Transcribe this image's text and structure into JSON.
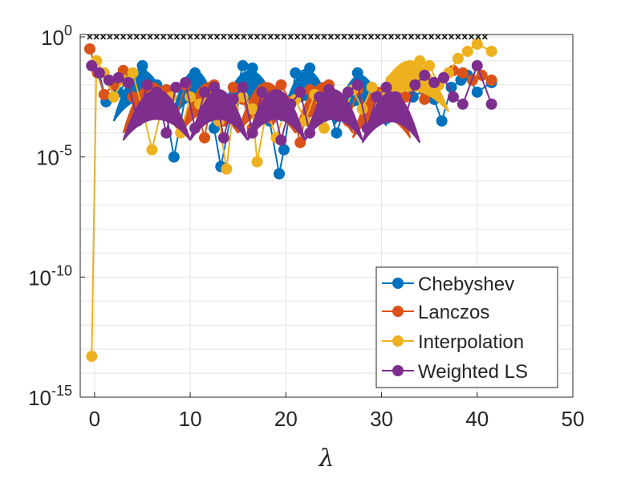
{
  "chart_data": {
    "type": "scatter",
    "title": "",
    "xlabel": "λ",
    "ylabel": "",
    "xlim": [
      -1.5,
      50
    ],
    "ylim_log10": [
      -15,
      0.1
    ],
    "x_ticks": [
      {
        "value": 0,
        "label": "0"
      },
      {
        "value": 10,
        "label": "10"
      },
      {
        "value": 20,
        "label": "20"
      },
      {
        "value": 30,
        "label": "30"
      },
      {
        "value": 40,
        "label": "40"
      },
      {
        "value": 50,
        "label": "50"
      }
    ],
    "y_ticks": [
      {
        "exp": 0,
        "base": "10",
        "sup": "0"
      },
      {
        "exp": -5,
        "base": "10",
        "sup": "-5"
      },
      {
        "exp": -10,
        "base": "10",
        "sup": "-10"
      },
      {
        "exp": -15,
        "base": "10",
        "sup": "-15"
      }
    ],
    "grid": true,
    "legend_position": "bottom-right",
    "eigenvalue_marker_level_log10": 0,
    "series": [
      {
        "name": "Chebyshev",
        "color": "#0072BD",
        "points": [
          [
            -0.3,
            -1.2
          ],
          [
            0.5,
            -1.5
          ],
          [
            1.2,
            -2.7
          ],
          [
            2.5,
            -2.3
          ],
          [
            3.5,
            -1.8
          ],
          [
            5,
            -1.2
          ],
          [
            6.5,
            -2.0
          ],
          [
            7.5,
            -3.2
          ],
          [
            8.3,
            -5.0
          ],
          [
            9.5,
            -2.5
          ],
          [
            10.5,
            -1.5
          ],
          [
            11.5,
            -2.5
          ],
          [
            12.5,
            -3.8
          ],
          [
            13.2,
            -5.4
          ],
          [
            14.5,
            -2.8
          ],
          [
            15.5,
            -1.2
          ],
          [
            16.5,
            -1.3
          ],
          [
            17.5,
            -2.5
          ],
          [
            18.3,
            -3.5
          ],
          [
            19.3,
            -5.7
          ],
          [
            19.8,
            -4.7
          ],
          [
            21,
            -1.5
          ],
          [
            22.5,
            -1.3
          ],
          [
            24,
            -2.3
          ],
          [
            25.3,
            -4.0
          ],
          [
            26.5,
            -2.5
          ],
          [
            27.5,
            -1.5
          ],
          [
            28.3,
            -2.0
          ],
          [
            29.5,
            -2.5
          ],
          [
            30.5,
            -3.4
          ],
          [
            31.5,
            -2.5
          ],
          [
            32.5,
            -1.8
          ],
          [
            33.3,
            -2.5
          ],
          [
            34.5,
            -2.2
          ],
          [
            35.5,
            -2.6
          ],
          [
            36.3,
            -3.5
          ],
          [
            37.3,
            -2.1
          ],
          [
            38.3,
            -1.8
          ],
          [
            39,
            -1.6
          ],
          [
            40,
            -2.3
          ],
          [
            41.5,
            -1.9
          ]
        ],
        "arcs": [
          [
            2,
            8,
            -1.3
          ],
          [
            8,
            13,
            -1.3
          ],
          [
            13,
            19.5,
            -1.3
          ],
          [
            19.5,
            25,
            -1.3
          ],
          [
            25,
            30.5,
            -1.5
          ]
        ]
      },
      {
        "name": "Lanczos",
        "color": "#D95319",
        "points": [
          [
            -0.5,
            -0.5
          ],
          [
            0.3,
            -1.5
          ],
          [
            1,
            -2.4
          ],
          [
            2,
            -2.0
          ],
          [
            3,
            -1.4
          ],
          [
            4,
            -2.5
          ],
          [
            5.5,
            -2.0
          ],
          [
            6.5,
            -3.0
          ],
          [
            7.5,
            -2.2
          ],
          [
            8.5,
            -3.4
          ],
          [
            9.5,
            -2.0
          ],
          [
            10.5,
            -2.6
          ],
          [
            11.5,
            -4.2
          ],
          [
            12.5,
            -2.0
          ],
          [
            13.5,
            -3.5
          ],
          [
            14.5,
            -2.1
          ],
          [
            15.5,
            -2.6
          ],
          [
            16.5,
            -3.8
          ],
          [
            17.5,
            -2.2
          ],
          [
            18.5,
            -3.4
          ],
          [
            19.5,
            -2.0
          ],
          [
            20.5,
            -2.7
          ],
          [
            21.5,
            -4.4
          ],
          [
            22.5,
            -2.2
          ],
          [
            23.5,
            -3.3
          ],
          [
            24.5,
            -2.0
          ],
          [
            25.5,
            -2.6
          ],
          [
            26.5,
            -3.5
          ],
          [
            27.5,
            -2.2
          ],
          [
            28.5,
            -3.2
          ],
          [
            29.5,
            -2.3
          ],
          [
            30.5,
            -2.8
          ],
          [
            31.5,
            -2.2
          ],
          [
            32.5,
            -2.5
          ],
          [
            33.5,
            -2.0
          ],
          [
            34.5,
            -2.6
          ],
          [
            35.5,
            -1.9
          ],
          [
            36.5,
            -1.7
          ],
          [
            37.5,
            -1.4
          ],
          [
            38.5,
            -1.5
          ],
          [
            39.5,
            -1.8
          ],
          [
            40.5,
            -1.6
          ],
          [
            41.5,
            -1.8
          ]
        ],
        "arcs": [
          [
            3,
            9,
            -1.8
          ],
          [
            9,
            15,
            -1.8
          ],
          [
            15,
            21,
            -1.8
          ],
          [
            21,
            27,
            -1.8
          ],
          [
            27,
            33,
            -2.0
          ]
        ]
      },
      {
        "name": "Interpolation",
        "color": "#EDB120",
        "points": [
          [
            -0.3,
            -13.3
          ],
          [
            0.2,
            -1.0
          ],
          [
            1,
            -1.5
          ],
          [
            2,
            -2.5
          ],
          [
            3,
            -1.8
          ],
          [
            4,
            -1.5
          ],
          [
            5,
            -3.0
          ],
          [
            6,
            -4.7
          ],
          [
            7,
            -3.0
          ],
          [
            8,
            -2.5
          ],
          [
            9,
            -4.0
          ],
          [
            10,
            -2.5
          ],
          [
            11,
            -2.8
          ],
          [
            12,
            -2.5
          ],
          [
            13,
            -3.5
          ],
          [
            13.8,
            -5.5
          ],
          [
            14.5,
            -3.0
          ],
          [
            15.5,
            -2.5
          ],
          [
            16.5,
            -3.0
          ],
          [
            17,
            -5.2
          ],
          [
            18,
            -3.0
          ],
          [
            19,
            -4.2
          ],
          [
            20,
            -3.0
          ],
          [
            21,
            -2.6
          ],
          [
            22,
            -3.5
          ],
          [
            23,
            -2.4
          ],
          [
            24,
            -3.8
          ],
          [
            25,
            -2.5
          ],
          [
            26,
            -3.3
          ],
          [
            27,
            -2.2
          ],
          [
            28,
            -3.0
          ],
          [
            29,
            -2.1
          ],
          [
            30,
            -2.6
          ],
          [
            31,
            -1.8
          ],
          [
            32,
            -1.5
          ],
          [
            33,
            -1.2
          ],
          [
            34,
            -1.0
          ],
          [
            35,
            -1.2
          ],
          [
            36,
            -2.0
          ],
          [
            37,
            -1.5
          ],
          [
            38,
            -0.9
          ],
          [
            39,
            -0.6
          ],
          [
            40,
            -0.3
          ],
          [
            41.5,
            -0.6
          ]
        ],
        "arcs": [
          [
            29,
            37,
            -0.9
          ]
        ]
      },
      {
        "name": "Weighted LS",
        "color": "#7E2F8E",
        "points": [
          [
            -0.3,
            -1.2
          ],
          [
            0.5,
            -1.5
          ],
          [
            1.5,
            -1.8
          ],
          [
            2.5,
            -1.7
          ],
          [
            3.5,
            -1.9
          ],
          [
            4.5,
            -3.5
          ],
          [
            5.5,
            -2.0
          ],
          [
            6.5,
            -2.3
          ],
          [
            7.5,
            -4.0
          ],
          [
            8.5,
            -2.1
          ],
          [
            9.5,
            -1.9
          ],
          [
            10.5,
            -3.8
          ],
          [
            11.5,
            -2.3
          ],
          [
            12.5,
            -2.1
          ],
          [
            13.5,
            -4.2
          ],
          [
            14.5,
            -2.6
          ],
          [
            15.5,
            -2.1
          ],
          [
            16.5,
            -4.0
          ],
          [
            17.5,
            -2.3
          ],
          [
            18.5,
            -2.5
          ],
          [
            19.5,
            -4.3
          ],
          [
            20.5,
            -2.8
          ],
          [
            21.5,
            -2.3
          ],
          [
            22.5,
            -4.0
          ],
          [
            23.5,
            -2.5
          ],
          [
            24.5,
            -2.2
          ],
          [
            25.5,
            -3.3
          ],
          [
            26.5,
            -2.3
          ],
          [
            27.5,
            -2.0
          ],
          [
            28.5,
            -3.8
          ],
          [
            29.5,
            -2.5
          ],
          [
            30.5,
            -2.1
          ],
          [
            31.5,
            -2.5
          ],
          [
            32.5,
            -3.3
          ],
          [
            33.5,
            -2.0
          ],
          [
            34.5,
            -1.6
          ],
          [
            35.5,
            -1.9
          ],
          [
            36.5,
            -1.7
          ],
          [
            37.5,
            -2.5
          ],
          [
            38.5,
            -2.8
          ],
          [
            40,
            -1.2
          ],
          [
            41.5,
            -2.8
          ]
        ],
        "arcs": [
          [
            3,
            10,
            -2.1
          ],
          [
            10,
            16,
            -2.1
          ],
          [
            16,
            22,
            -2.1
          ],
          [
            22,
            28,
            -2.1
          ],
          [
            28,
            34,
            -2.2
          ]
        ]
      }
    ]
  }
}
